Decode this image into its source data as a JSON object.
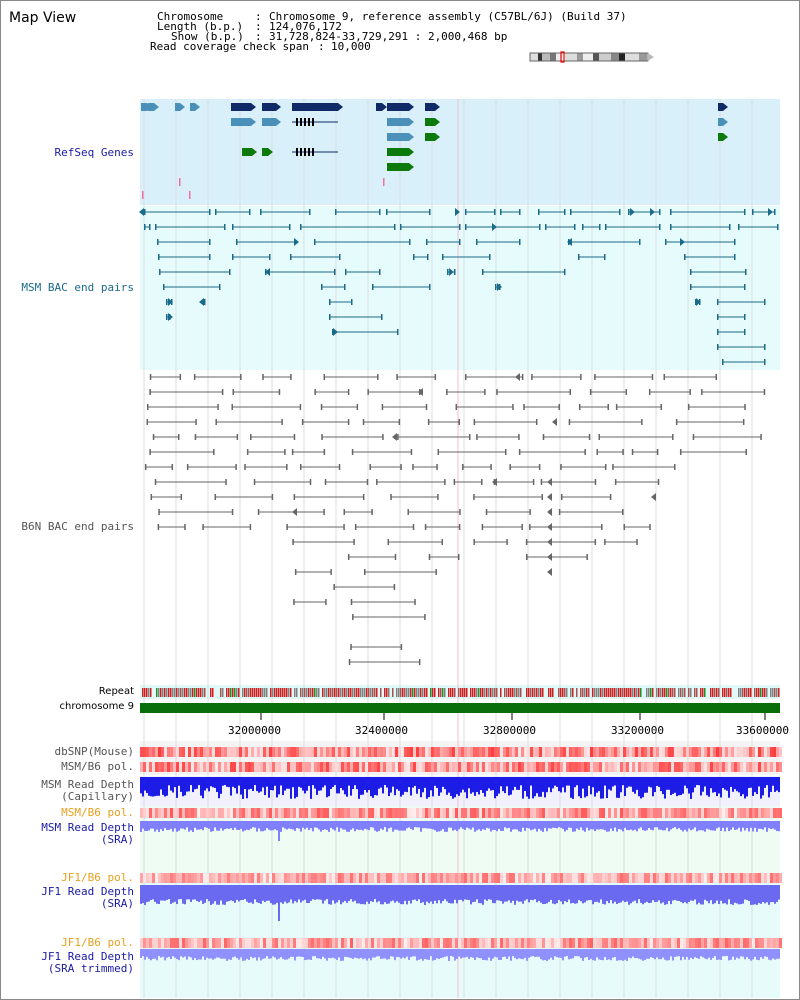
{
  "page": {
    "title": "Map View"
  },
  "info": {
    "chromosome_label": "Chromosome",
    "chromosome_value": "Chromosome 9, reference assembly (C57BL/6J) (Build 37)",
    "length_label": "Length (b.p.)",
    "length_value": "124,076,172",
    "show_label": "Show (b.p.)",
    "show_value": "31,728,824-33,729,291 : 2,000,468 bp",
    "coverage_label": "Read coverage check span",
    "coverage_value": "10,000"
  },
  "tracks": {
    "refseq": "RefSeq Genes",
    "msm_bac": "MSM BAC end pairs",
    "b6n_bac": "B6N BAC end pairs",
    "repeat": "Repeat",
    "chromosome": "chromosome 9",
    "dbsnp": "dbSNP(Mouse)",
    "msm_b6_pol_1": "MSM/B6 pol.",
    "msm_depth_cap_1": "MSM Read Depth",
    "msm_depth_cap_2": "(Capillary)",
    "msm_b6_pol_2": "MSM/B6 pol.",
    "msm_depth_sra_1": "MSM Read Depth",
    "msm_depth_sra_2": "(SRA)",
    "jf1_b6_pol_1": "JF1/B6 pol.",
    "jf1_depth_sra_1": "JF1 Read Depth",
    "jf1_depth_sra_2": "(SRA)",
    "jf1_b6_pol_2": "JF1/B6 pol.",
    "jf1_depth_trim_1": "JF1 Read Depth",
    "jf1_depth_trim_2": "(SRA trimmed)"
  },
  "axis": {
    "ticks": [
      "32000000",
      "32400000",
      "32800000",
      "33200000",
      "33600000"
    ]
  },
  "colors": {
    "refseq_bg": "#d9f0fb",
    "msm_bg": "#e6fbfb",
    "gene_dark": "#0f2a66",
    "gene_mid": "#4a90b8",
    "gene_green": "#0b7a0b",
    "bac_teal": "#1a6a8a",
    "bac_gray": "#666666",
    "chrom_green": "#0a6e0a",
    "depth_blue": "#1c1ce6",
    "depth_light": "#8080ff",
    "pol_orange": "#e8a020",
    "label_blue": "#1a1aa8"
  }
}
